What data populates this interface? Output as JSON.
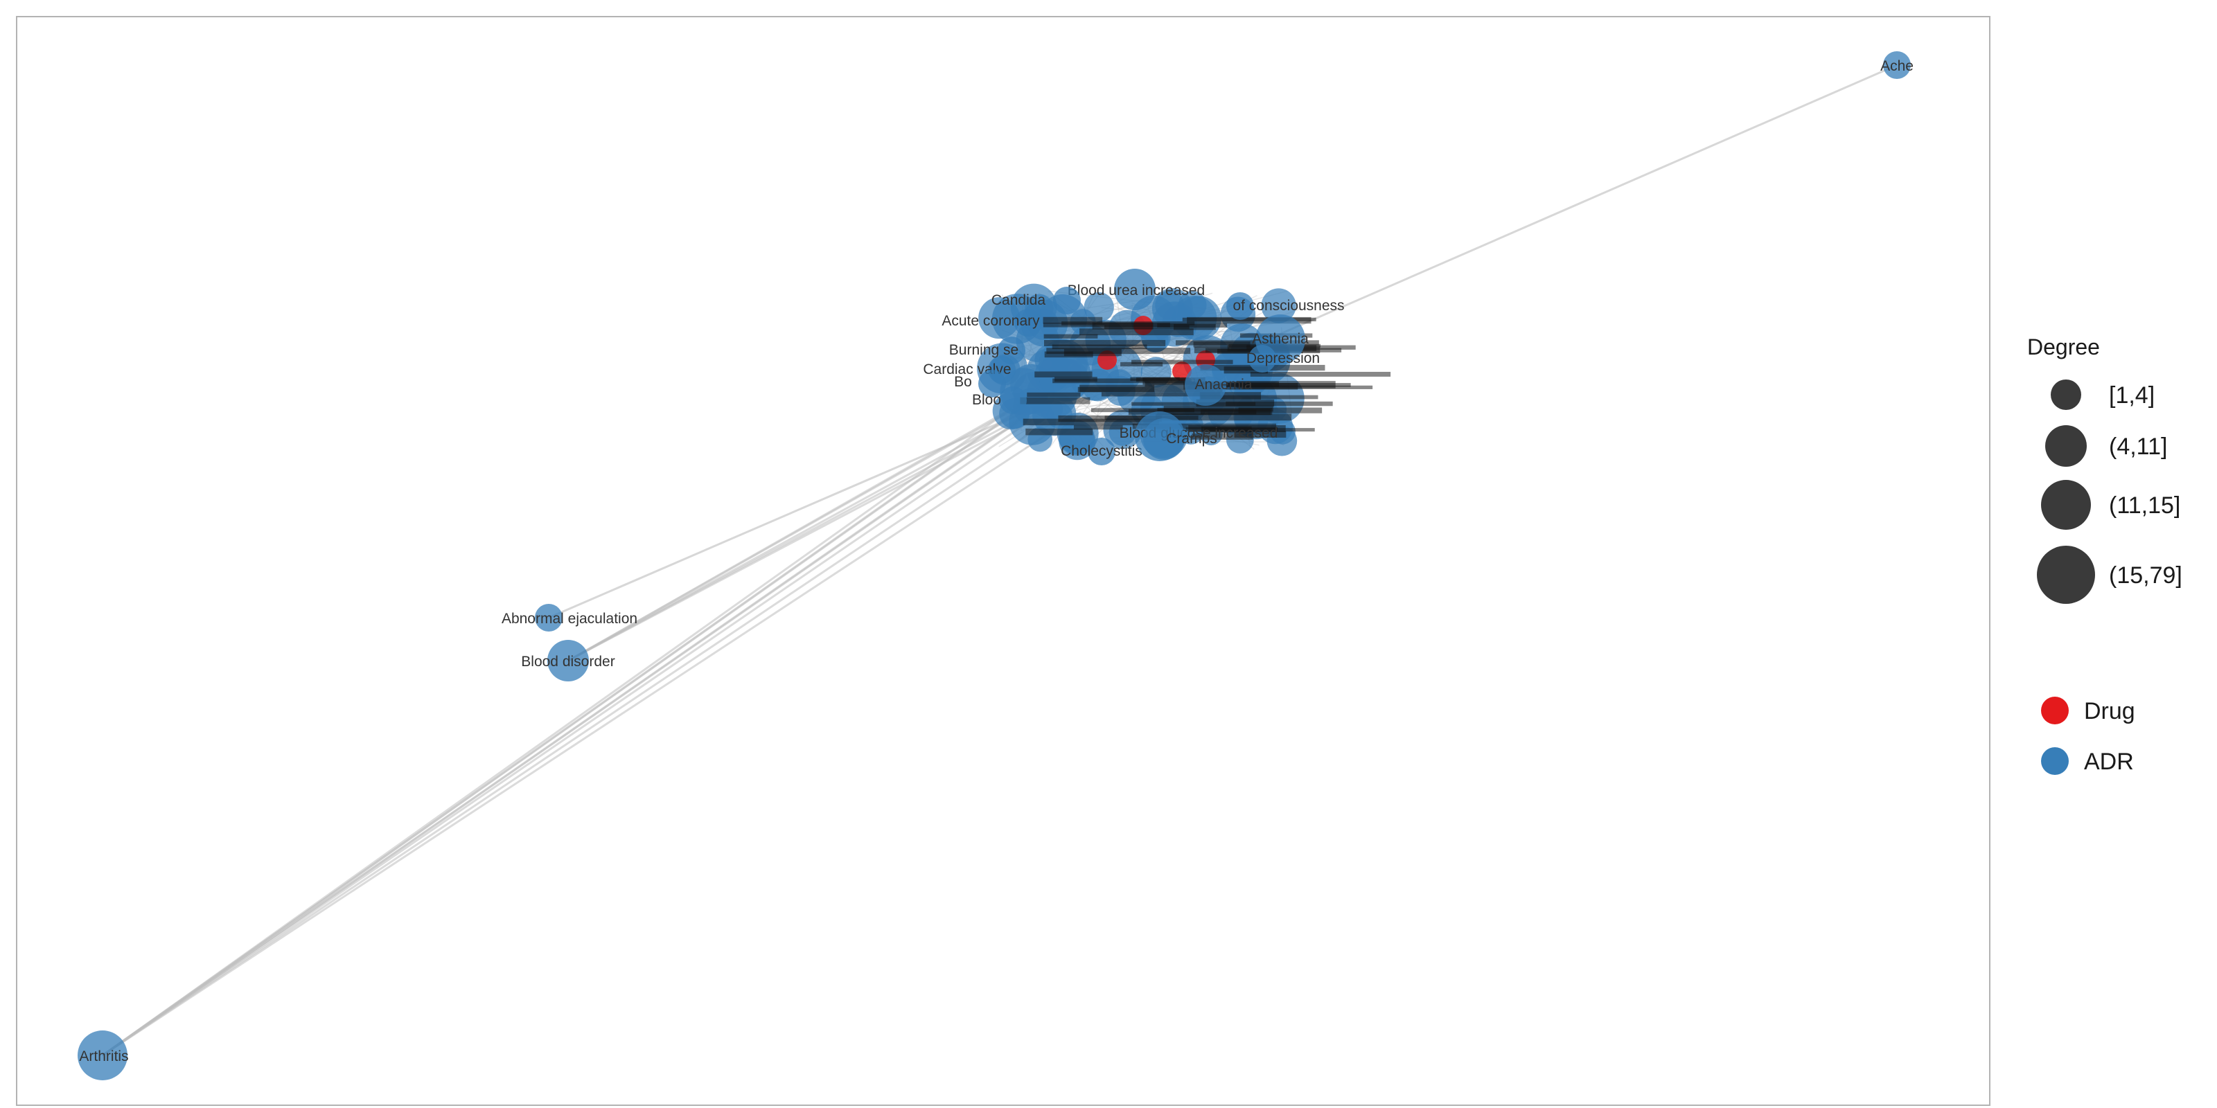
{
  "colors": {
    "drug": "#e41a1c",
    "adr": "#377eb8",
    "edge": "#bdbdbd",
    "legend_size_dot": "#3a3a3a",
    "panel_border": "#b3b3b3"
  },
  "legend": {
    "size_title": "Degree",
    "size_items": [
      "[1,4]",
      "(4,11]",
      "(11,15]",
      "(15,79]"
    ],
    "color_items": [
      {
        "label": "Drug",
        "color": "#e41a1c"
      },
      {
        "label": "ADR",
        "color": "#377eb8"
      }
    ]
  },
  "nodes": [
    {
      "label": "Ache",
      "type": "ADR",
      "degree_bin": 1
    },
    {
      "label": "Arthritis",
      "type": "ADR",
      "degree_bin": 3
    },
    {
      "label": "Abnormal ejaculation",
      "type": "ADR",
      "degree_bin": 1
    },
    {
      "label": "Blood disorder",
      "type": "ADR",
      "degree_bin": 2
    },
    {
      "label": "Asthenia",
      "type": "ADR",
      "degree_bin": 3
    },
    {
      "label": "Cholecystitis",
      "type": "ADR",
      "degree_bin": 1
    },
    {
      "label": "Blood urea increased",
      "type": "ADR",
      "degree_bin": 2
    },
    {
      "label": "Candida",
      "type": "ADR",
      "degree_bin": 1
    },
    {
      "label": "Acute coronary",
      "type": "ADR",
      "degree_bin": 1
    },
    {
      "label": "Burning se",
      "type": "ADR",
      "degree_bin": 1
    },
    {
      "label": "Cardiac valve",
      "type": "ADR",
      "degree_bin": 1
    },
    {
      "label": "Blood glucose increased",
      "type": "ADR",
      "degree_bin": 3
    },
    {
      "label": "of consciousness",
      "type": "ADR",
      "degree_bin": 1
    },
    {
      "label": "Depression",
      "type": "ADR",
      "degree_bin": 1
    },
    {
      "label": "Anaemia",
      "type": "ADR",
      "degree_bin": 2
    },
    {
      "label": "Cramps",
      "type": "ADR",
      "degree_bin": 2
    },
    {
      "label": "Bo",
      "type": "ADR",
      "degree_bin": 1
    },
    {
      "label": "Bloo",
      "type": "ADR",
      "degree_bin": 1
    }
  ]
}
